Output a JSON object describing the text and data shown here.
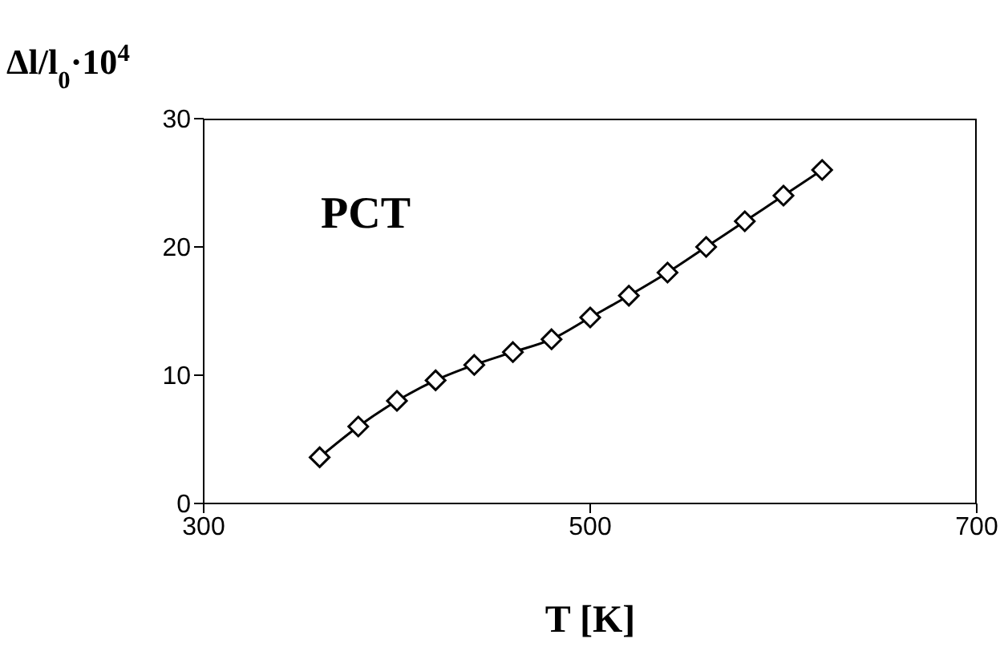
{
  "chart_data": {
    "type": "line",
    "xlabel": "T [K]",
    "ylabel": "Δl/l$_{0}$·10$^{4}$",
    "annotations": [
      "PCT"
    ],
    "x": [
      360,
      380,
      400,
      420,
      440,
      460,
      480,
      500,
      520,
      540,
      560,
      580,
      600,
      620
    ],
    "series": [
      {
        "color": "#000000",
        "values": [
          3.6,
          6,
          8,
          9.6,
          10.8,
          11.8,
          12.8,
          14.5,
          16.2,
          18,
          20,
          22,
          24,
          26
        ]
      }
    ],
    "xlim": [
      300,
      700
    ],
    "xticks": [
      300,
      500,
      700
    ],
    "ylim": [
      0,
      30
    ],
    "yticks": [
      0,
      10,
      20,
      30
    ],
    "marker": "diamond",
    "grid": false
  }
}
